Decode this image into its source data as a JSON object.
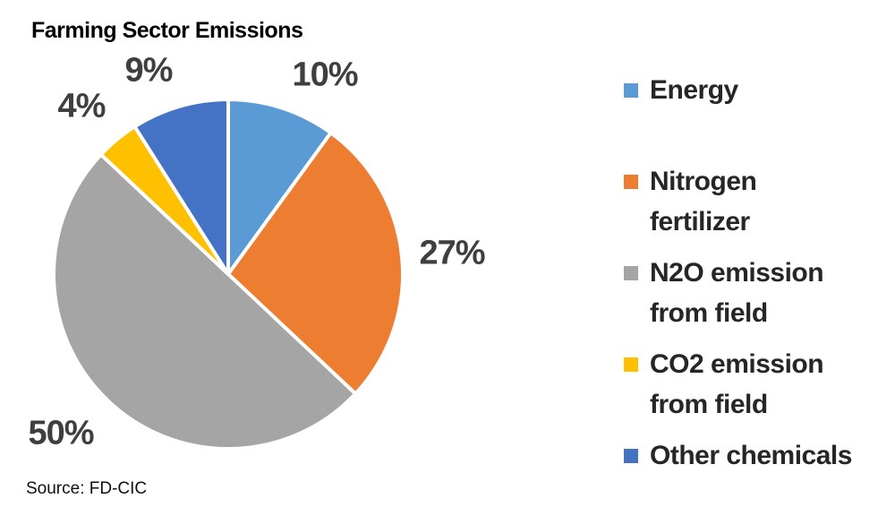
{
  "page": {
    "source_caption": "Source: FD-CIC"
  },
  "chart_data": {
    "type": "pie",
    "title": "Farming Sector Emissions",
    "legend_position": "right",
    "direction": "clockwise",
    "start_angle_deg": 0,
    "slice_border_color": "#ffffff",
    "percent_label_color": "#3f3f3f",
    "categories": [
      "Energy",
      "Nitrogen fertilizer",
      "N2O emission from field",
      "CO2 emission from field",
      "Other chemicals"
    ],
    "values": [
      10,
      27,
      50,
      4,
      9
    ],
    "slices": [
      {
        "label": "Energy",
        "value": 10,
        "pct_label": "10%",
        "color": "#5b9bd5"
      },
      {
        "label": "Nitrogen fertilizer",
        "value": 27,
        "pct_label": "27%",
        "color": "#ed7d31"
      },
      {
        "label": "N2O emission from field",
        "value": 50,
        "pct_label": "50%",
        "color": "#a5a5a5"
      },
      {
        "label": "CO2 emission from field",
        "value": 4,
        "pct_label": "4%",
        "color": "#ffc000"
      },
      {
        "label": "Other chemicals",
        "value": 9,
        "pct_label": "9%",
        "color": "#4472c4"
      }
    ]
  }
}
